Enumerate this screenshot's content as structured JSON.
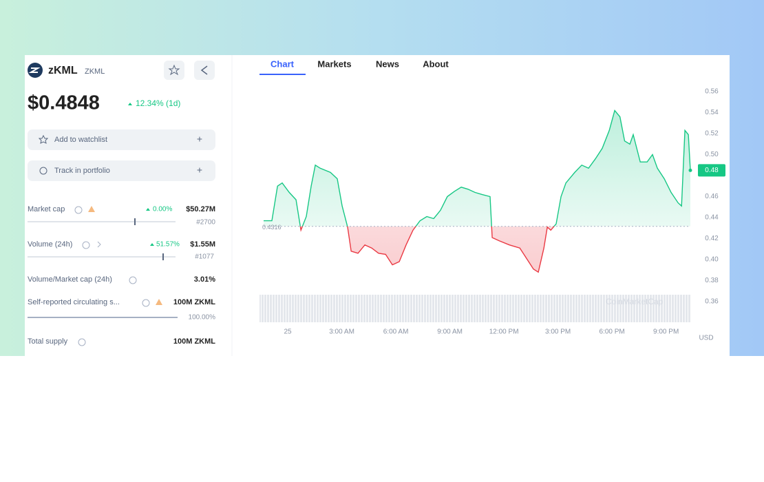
{
  "header": {
    "name": "zKML",
    "symbol": "ZKML",
    "price": "$0.4848",
    "change": "12.34% (1d)"
  },
  "actions": [
    "Add to watchlist",
    "Track in portfolio"
  ],
  "stats": [
    {
      "label": "Market cap",
      "change": "0.00%",
      "value": "$50.27M",
      "rank": "#2700"
    },
    {
      "label": "Volume (24h)",
      "change": "51.57%",
      "value": "$1.55M",
      "rank": "#1077"
    },
    {
      "label": "Volume/Market cap (24h)",
      "value": "3.01%"
    },
    {
      "label": "Self-reported circulating s...",
      "value": "100M ZKML",
      "percent": "100.00%"
    },
    {
      "label": "Total supply",
      "value": "100M ZKML"
    }
  ],
  "tabs": [
    "Chart",
    "Markets",
    "News",
    "About"
  ],
  "chart_data": {
    "type": "line",
    "x": [
      -1.34,
      -0.88,
      -0.57,
      -0.31,
      0.08,
      0.46,
      0.73,
      1.03,
      1.3,
      1.53,
      1.8,
      2.37,
      2.75,
      3.02,
      3.32,
      3.52,
      3.9,
      4.28,
      4.66,
      5.04,
      5.43,
      5.81,
      6.19,
      6.57,
      6.95,
      7.34,
      7.72,
      8.1,
      8.48,
      8.86,
      9.25,
      9.63,
      10.01,
      10.39,
      10.78,
      11.23,
      11.35,
      11.73,
      12.3,
      12.88,
      13.26,
      13.64,
      13.91,
      14.22,
      14.41,
      14.6,
      14.9,
      15.17,
      15.44,
      15.93,
      16.32,
      16.7,
      17.08,
      17.46,
      17.85,
      18.15,
      18.44,
      18.7,
      18.99,
      19.18,
      19.57,
      19.95,
      20.25,
      20.52,
      20.9,
      21.28,
      21.67,
      21.86,
      22.05,
      22.24,
      22.35
    ],
    "values": [
      0.437,
      0.437,
      0.47,
      0.473,
      0.464,
      0.457,
      0.428,
      0.441,
      0.47,
      0.49,
      0.487,
      0.483,
      0.477,
      0.451,
      0.431,
      0.408,
      0.406,
      0.414,
      0.411,
      0.406,
      0.405,
      0.395,
      0.398,
      0.414,
      0.428,
      0.437,
      0.441,
      0.439,
      0.447,
      0.46,
      0.465,
      0.469,
      0.467,
      0.464,
      0.462,
      0.46,
      0.421,
      0.418,
      0.414,
      0.411,
      0.401,
      0.391,
      0.388,
      0.411,
      0.431,
      0.428,
      0.434,
      0.46,
      0.473,
      0.483,
      0.49,
      0.487,
      0.496,
      0.506,
      0.523,
      0.542,
      0.536,
      0.513,
      0.51,
      0.519,
      0.493,
      0.493,
      0.5,
      0.487,
      0.477,
      0.464,
      0.454,
      0.451,
      0.523,
      0.519,
      0.485
    ],
    "color": "#16c784",
    "below_color": "#ea3943",
    "baseline": 0.4316,
    "price_tag": "0.48",
    "xlim": [
      -1.34,
      22.35
    ],
    "xticks": [
      {
        "value": 0,
        "label": "25"
      },
      {
        "value": 3,
        "label": "3:00 AM"
      },
      {
        "value": 6,
        "label": "6:00 AM"
      },
      {
        "value": 9,
        "label": "9:00 AM"
      },
      {
        "value": 12,
        "label": "12:00 PM"
      },
      {
        "value": 15,
        "label": "3:00 PM"
      },
      {
        "value": 18,
        "label": "6:00 PM"
      },
      {
        "value": 21,
        "label": "9:00 PM"
      }
    ],
    "ylim": [
      0.36,
      0.56
    ],
    "yticks": [
      0.56,
      0.54,
      0.52,
      {
        "value": 0.5,
        "label": "0.50"
      },
      0.46,
      0.44,
      0.42,
      {
        "value": 0.4,
        "label": "0.40"
      },
      0.38,
      0.36
    ],
    "unit": "USD",
    "watermark": "CoinMarketCap",
    "grid": false
  }
}
